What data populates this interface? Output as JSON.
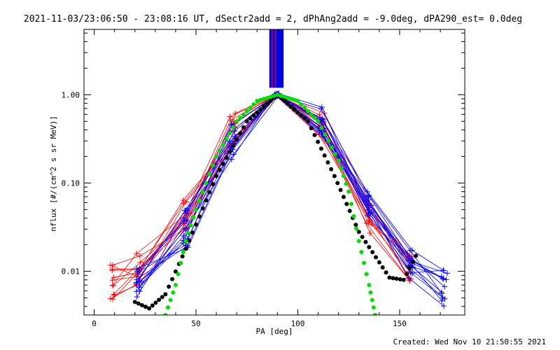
{
  "chart_data": {
    "type": "line",
    "title": "2021-11-03/23:06:50 - 23:08:16 UT, dSectr2add = 2, dPhAng2add = -9.0deg, dPA290_est=  0.0deg",
    "xlabel": "PA [deg]",
    "ylabel": "nflux [#/(cm^2 s sr MeV)]",
    "xlim": [
      -5,
      182
    ],
    "ylim": [
      0.0032,
      5.5
    ],
    "yscale": "log",
    "x_ticks": [
      0,
      50,
      100,
      150
    ],
    "x_tick_labels": [
      "0",
      "50",
      "100",
      "150"
    ],
    "y_ticks": [
      0.01,
      0.1,
      1.0
    ],
    "y_tick_labels": [
      "0.01",
      "0.10",
      "1.00"
    ],
    "footer": "Created: Wed Nov 10 21:50:55 2021",
    "series": [
      {
        "color": "#ff0000",
        "marker": "plus",
        "x": [
          9,
          22,
          45,
          68,
          90,
          112,
          135,
          155
        ],
        "y": [
          0.0075,
          0.011,
          0.045,
          0.4,
          1.0,
          0.4,
          0.04,
          0.01
        ],
        "spread": 0.2,
        "copies": 12
      },
      {
        "color": "#0000ff",
        "marker": "plus",
        "x": [
          22,
          45,
          68,
          90,
          112,
          135,
          155,
          172
        ],
        "y": [
          0.0085,
          0.03,
          0.3,
          1.0,
          0.5,
          0.07,
          0.011,
          0.0065
        ],
        "spread": 0.22,
        "copies": 14
      },
      {
        "color": "#000000",
        "marker": "dot",
        "x": [
          20,
          27,
          35,
          45,
          60,
          75,
          90,
          105,
          118,
          130,
          145,
          152,
          158
        ],
        "y": [
          0.0045,
          0.0038,
          0.0055,
          0.018,
          0.12,
          0.5,
          1.0,
          0.5,
          0.12,
          0.028,
          0.0085,
          0.008,
          0.015
        ]
      },
      {
        "color": "#00dd00",
        "marker": "dot",
        "x": [
          35,
          40,
          45,
          50,
          60,
          70,
          80,
          90,
          100,
          110,
          120,
          125,
          130,
          135,
          138
        ],
        "y": [
          0.0032,
          0.007,
          0.022,
          0.05,
          0.2,
          0.5,
          0.85,
          1.0,
          0.85,
          0.5,
          0.18,
          0.08,
          0.022,
          0.007,
          0.0032
        ]
      }
    ],
    "top_bars": {
      "color": "#0000ff",
      "accent_color": "#ff0000",
      "x_range": [
        86,
        93
      ],
      "y_bottom": 1.2
    }
  }
}
